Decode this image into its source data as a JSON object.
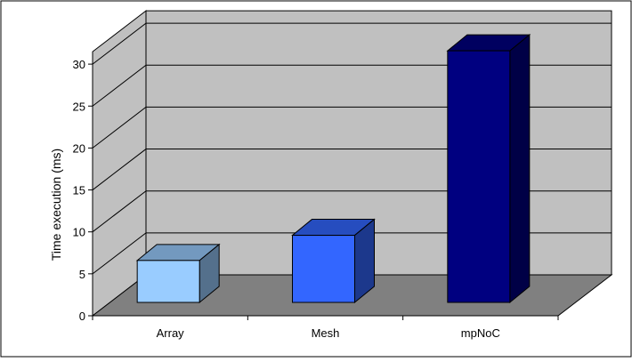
{
  "chart_data": {
    "type": "bar",
    "title": "",
    "xlabel": "",
    "ylabel": "Time execution (ms)",
    "categories": [
      "Array",
      "Mesh",
      "mpNoC"
    ],
    "values": [
      5,
      8,
      30
    ],
    "ylim": [
      0,
      30
    ],
    "y_ticks": [
      "0",
      "5",
      "10",
      "15",
      "20",
      "25",
      "30"
    ],
    "grid": true,
    "legend": "none",
    "style": "3d",
    "colors": {
      "wall": "#C0C0C0",
      "floor": "#808080",
      "Array": "#99CCFF",
      "Mesh": "#3366FF",
      "mpNoC": "#000080"
    }
  }
}
